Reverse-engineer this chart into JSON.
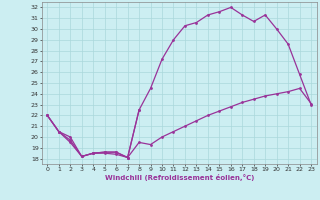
{
  "xlabel": "Windchill (Refroidissement éolien,°C)",
  "xlim": [
    -0.5,
    23.5
  ],
  "ylim": [
    17.5,
    32.5
  ],
  "xticks": [
    0,
    1,
    2,
    3,
    4,
    5,
    6,
    7,
    8,
    9,
    10,
    11,
    12,
    13,
    14,
    15,
    16,
    17,
    18,
    19,
    20,
    21,
    22,
    23
  ],
  "yticks": [
    18,
    19,
    20,
    21,
    22,
    23,
    24,
    25,
    26,
    27,
    28,
    29,
    30,
    31,
    32
  ],
  "background_color": "#cceef2",
  "grid_color": "#aad8dc",
  "line_color": "#993399",
  "line1_x": [
    0,
    1,
    2,
    3,
    4,
    5,
    6,
    7,
    8
  ],
  "line1_y": [
    22.0,
    20.5,
    19.5,
    18.2,
    18.5,
    18.5,
    18.4,
    18.1,
    22.5
  ],
  "line2_x": [
    0,
    1,
    2,
    3,
    4,
    5,
    6,
    7,
    8,
    9,
    10,
    11,
    12,
    13,
    14,
    15,
    16,
    17,
    18,
    19,
    20,
    21,
    22,
    23
  ],
  "line2_y": [
    22.0,
    20.5,
    20.0,
    18.2,
    18.5,
    18.6,
    18.6,
    18.1,
    22.5,
    24.5,
    27.2,
    29.0,
    30.3,
    30.6,
    31.3,
    31.6,
    32.0,
    31.3,
    30.7,
    31.3,
    30.0,
    28.6,
    25.8,
    23.0
  ],
  "line3_x": [
    0,
    1,
    2,
    3,
    4,
    5,
    6,
    7,
    8,
    9,
    10,
    11,
    12,
    13,
    14,
    15,
    16,
    17,
    18,
    19,
    20,
    21,
    22,
    23
  ],
  "line3_y": [
    22.0,
    20.5,
    19.7,
    18.2,
    18.5,
    18.6,
    18.6,
    18.1,
    19.5,
    19.3,
    20.0,
    20.5,
    21.0,
    21.5,
    22.0,
    22.4,
    22.8,
    23.2,
    23.5,
    23.8,
    24.0,
    24.2,
    24.5,
    23.1
  ]
}
